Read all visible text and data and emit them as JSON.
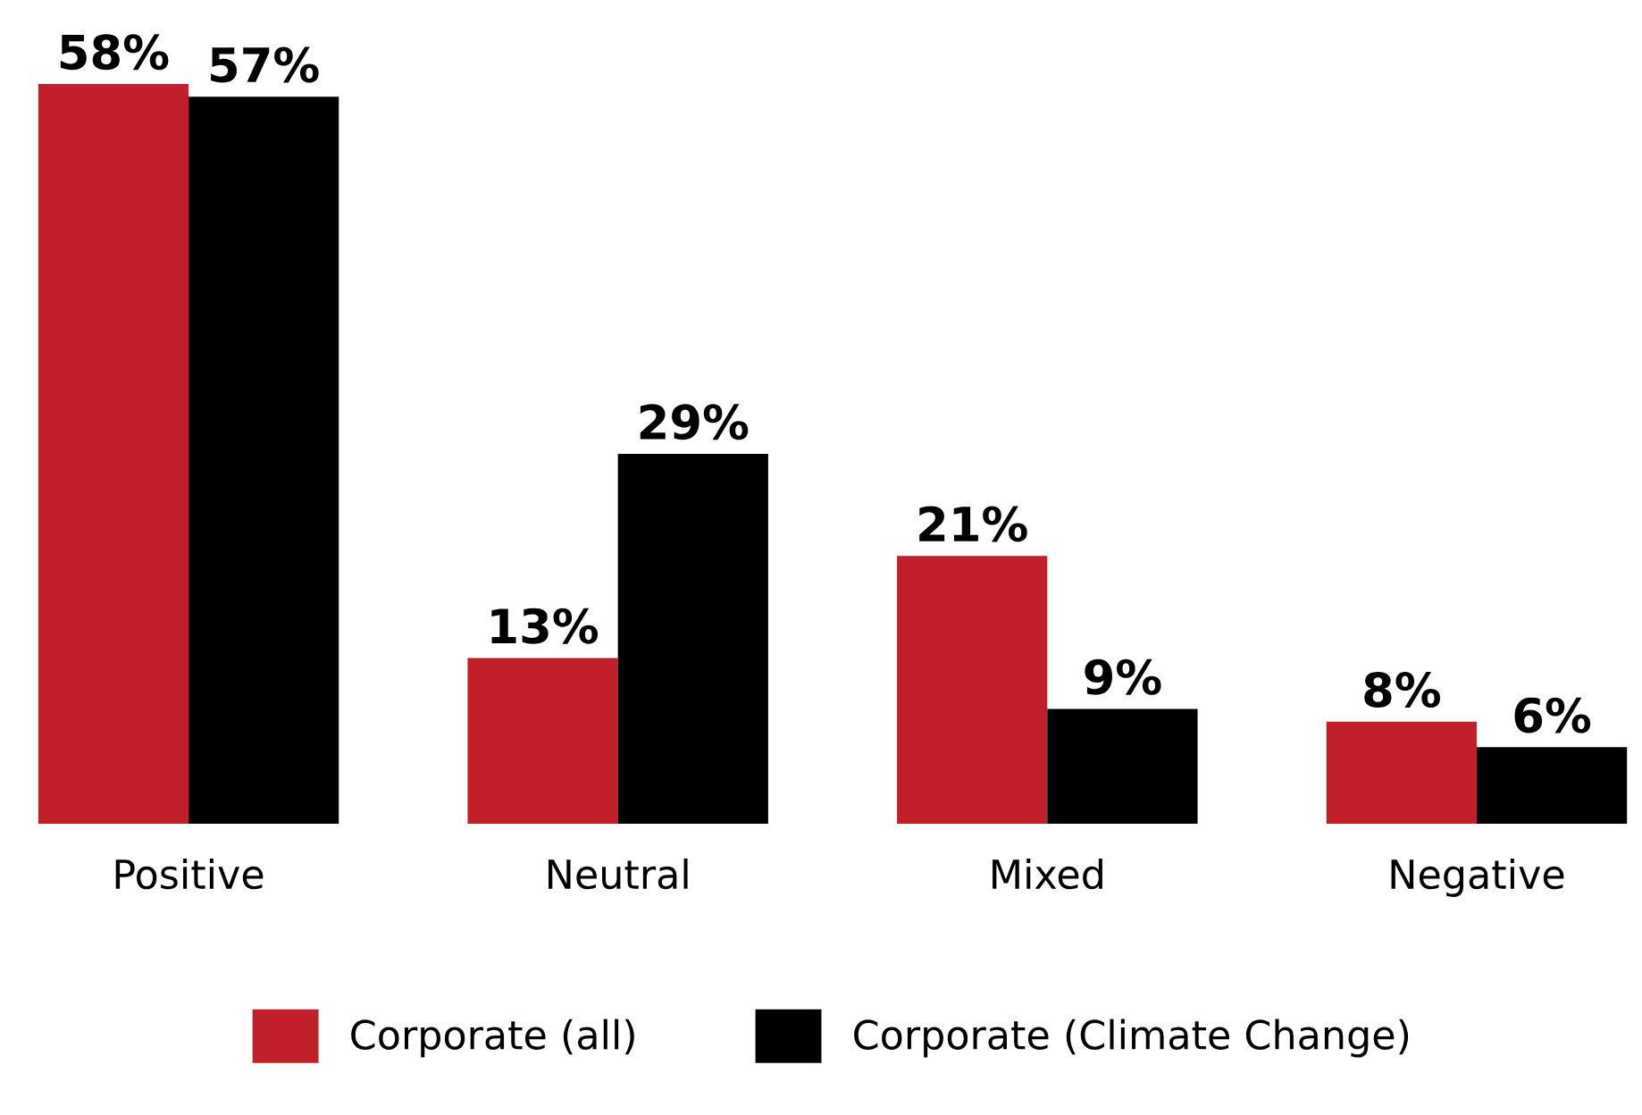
{
  "chart_data": {
    "type": "bar",
    "categories": [
      "Positive",
      "Neutral",
      "Mixed",
      "Negative"
    ],
    "series": [
      {
        "name": "Corporate (all)",
        "color": "#c1202a",
        "values": [
          58,
          13,
          21,
          8
        ],
        "value_labels": [
          "58%",
          "13%",
          "21%",
          "8%"
        ]
      },
      {
        "name": "Corporate (Climate Change)",
        "color": "#000000",
        "values": [
          57,
          29,
          9,
          6
        ],
        "value_labels": [
          "57%",
          "29%",
          "9%",
          "6%"
        ]
      }
    ],
    "legend": "bottom",
    "grid": false
  }
}
